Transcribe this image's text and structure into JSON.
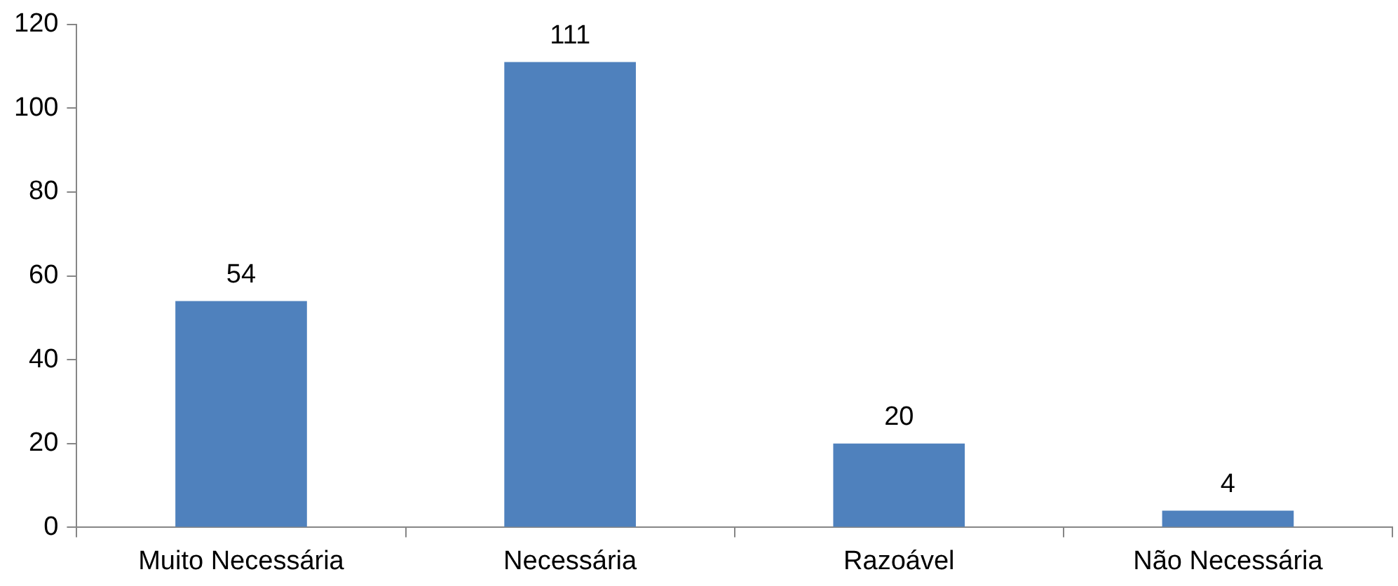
{
  "chart_data": {
    "type": "bar",
    "categories": [
      "Muito Necessária",
      "Necessária",
      "Razoável",
      "Não Necessária"
    ],
    "values": [
      54,
      111,
      20,
      4
    ],
    "color": "#4f81bd",
    "ylim": [
      0,
      120
    ],
    "yticks": [
      0,
      20,
      40,
      60,
      80,
      100,
      120
    ],
    "grid": false,
    "legend": false,
    "data_labels": true
  }
}
